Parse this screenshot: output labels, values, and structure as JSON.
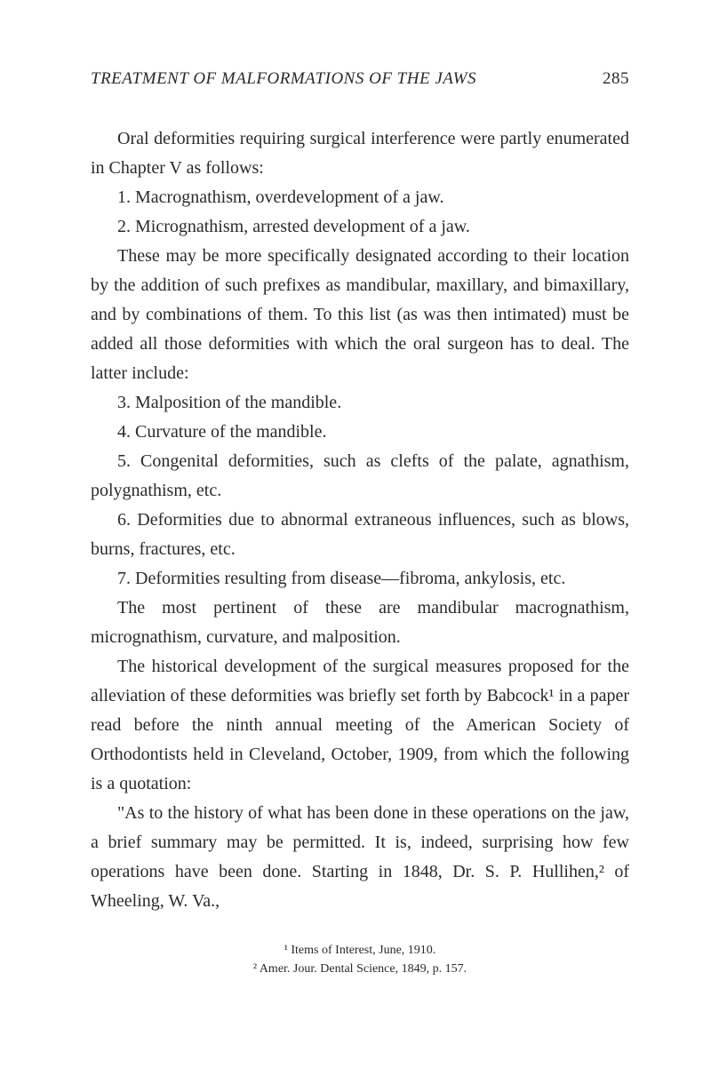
{
  "header": {
    "title": "TREATMENT OF MALFORMATIONS OF THE JAWS",
    "pageNumber": "285"
  },
  "paragraphs": [
    {
      "text": "Oral deformities requiring surgical interference were partly enumerated in Chapter V as follows:",
      "indent": true
    },
    {
      "text": "1. Macrognathism, overdevelopment of a jaw.",
      "indent": true
    },
    {
      "text": "2. Micrognathism, arrested development of a jaw.",
      "indent": true
    },
    {
      "text": "These may be more specifically designated according to their location by the addition of such prefixes as mandibular, maxillary, and bimaxillary, and by combinations of them. To this list (as was then intimated) must be added all those deformities with which the oral surgeon has to deal. The latter include:",
      "indent": true
    },
    {
      "text": "3. Malposition of the mandible.",
      "indent": true
    },
    {
      "text": "4. Curvature of the mandible.",
      "indent": true
    },
    {
      "text": "5. Congenital deformities, such as clefts of the palate, agnathism, polygnathism, etc.",
      "indent": true
    },
    {
      "text": "6. Deformities due to abnormal extraneous influences, such as blows, burns, fractures, etc.",
      "indent": true
    },
    {
      "text": "7. Deformities resulting from disease—fibroma, ankylosis, etc.",
      "indent": true
    },
    {
      "text": "The most pertinent of these are mandibular macrognathism, micrognathism, curvature, and malposition.",
      "indent": true
    },
    {
      "text": "The historical development of the surgical measures proposed for the alleviation of these deformities was briefly set forth by Babcock¹ in a paper read before the ninth annual meeting of the American Society of Orthodontists held in Cleveland, October, 1909, from which the following is a quotation:",
      "indent": true
    },
    {
      "text": "\"As to the history of what has been done in these operations on the jaw, a brief summary may be permitted. It is, indeed, surprising how few operations have been done. Starting in 1848, Dr. S. P. Hullihen,² of Wheeling, W. Va.,",
      "indent": true
    }
  ],
  "footnotes": [
    "¹ Items of Interest, June, 1910.",
    "² Amer. Jour. Dental Science, 1849, p. 157."
  ],
  "style": {
    "backgroundColor": "#ffffff",
    "textColor": "#2a2a2a",
    "bodyFontSize": 20,
    "headerFontSize": 19,
    "footnoteFontSize": 14,
    "lineHeight": 1.65
  }
}
